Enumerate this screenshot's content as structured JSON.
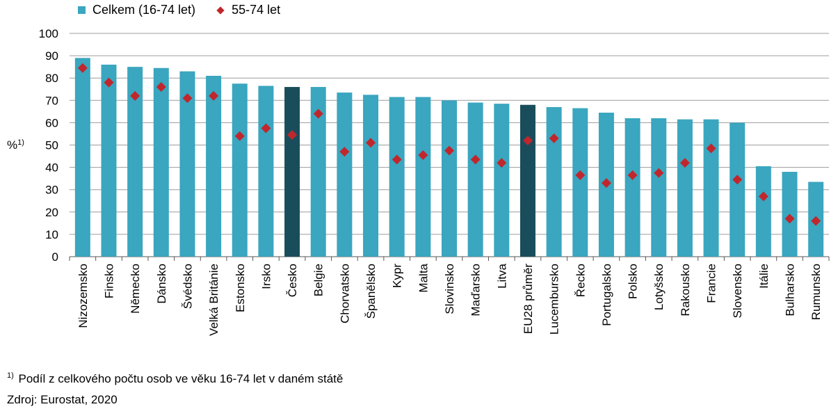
{
  "chart_data": {
    "type": "bar",
    "ylabel": "%",
    "ylabel_sup": "1)",
    "ylim": [
      0,
      100
    ],
    "yticks": [
      0,
      10,
      20,
      30,
      40,
      50,
      60,
      70,
      80,
      90,
      100
    ],
    "grid": true,
    "legend_position": "top-left",
    "categories": [
      "Nizozemsko",
      "Finsko",
      "Německo",
      "Dánsko",
      "Švédsko",
      "Velká Británie",
      "Estonsko",
      "Irsko",
      "Česko",
      "Belgie",
      "Chorvatsko",
      "Španělsko",
      "Kypr",
      "Malta",
      "Slovinsko",
      "Maďarsko",
      "Litva",
      "EU28 průměr",
      "Lucembursko",
      "Řecko",
      "Portugalsko",
      "Polsko",
      "Lotyšsko",
      "Rakousko",
      "Francie",
      "Slovensko",
      "Itálie",
      "Bulharsko",
      "Rumunsko"
    ],
    "highlighted": [
      "Česko",
      "EU28 průměr"
    ],
    "series": [
      {
        "name": "Celkem (16-74 let)",
        "type": "bar",
        "values": [
          89,
          86,
          85,
          84.5,
          83,
          81,
          77.5,
          76.5,
          76,
          76,
          73.5,
          72.5,
          71.5,
          71.5,
          70,
          69,
          68.5,
          68,
          67,
          66.5,
          64.5,
          62,
          62,
          61.5,
          61.5,
          60,
          40.5,
          38,
          33.5
        ]
      },
      {
        "name": "55-74 let",
        "type": "marker",
        "values": [
          84.5,
          78,
          72,
          76,
          71,
          72,
          54,
          57.5,
          54.5,
          64,
          47,
          51,
          43.5,
          45.5,
          47.5,
          43.5,
          42,
          52,
          53,
          36.5,
          33,
          36.5,
          37.5,
          42,
          48.5,
          34.5,
          27,
          17,
          16
        ]
      }
    ],
    "colors": {
      "bar": "#3aa6bf",
      "bar_highlight": "#1a4d5c",
      "marker": "#c0272d",
      "grid": "#9c9c9c"
    }
  },
  "legend": {
    "bar_label": "Celkem (16-74 let)",
    "marker_label": "55-74 let"
  },
  "footnotes": {
    "note_marker": "1)",
    "note_text": "Podíl z celkového počtu osob ve věku 16-74 let v daném státě",
    "source": "Zdroj: Eurostat, 2020"
  }
}
